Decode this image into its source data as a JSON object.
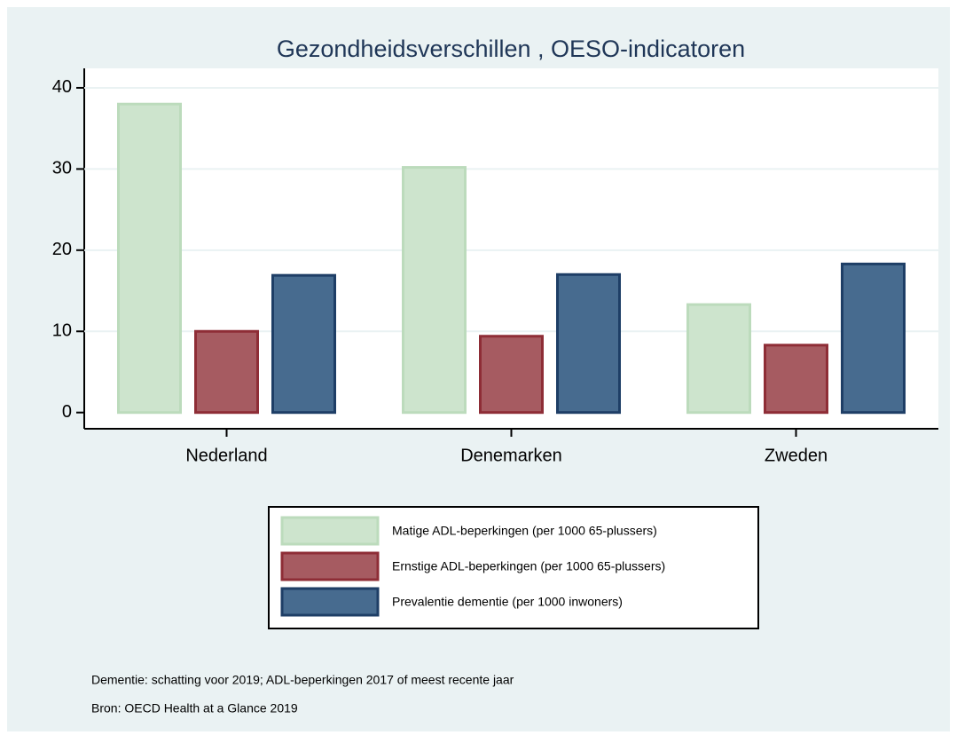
{
  "chart_data": {
    "type": "bar",
    "title": "Gezondheidsverschillen , OESO-indicatoren",
    "categories": [
      "Nederland",
      "Denemarken",
      "Zweden"
    ],
    "series": [
      {
        "name": "Matige ADL-beperkingen (per 1000 65-plussers)",
        "color": "#cde4cd",
        "values": [
          38.0,
          30.2,
          13.3
        ]
      },
      {
        "name": "Ernstige ADL-beperkingen (per 1000 65-plussers)",
        "color": "#a65b61",
        "values": [
          10.0,
          9.4,
          8.3
        ]
      },
      {
        "name": "Prevalentie dementie (per 1000 inwoners)",
        "color": "#476b8f",
        "values": [
          16.9,
          17.0,
          18.3
        ]
      }
    ],
    "ylim": [
      -2,
      42.4
    ],
    "yticks": [
      0,
      10,
      20,
      30,
      40
    ],
    "grid": true,
    "notes": [
      "Dementie: schatting voor 2019; ADL-beperkingen 2017 of meest recente jaar",
      "Bron: OECD Health at a Glance 2019"
    ]
  }
}
